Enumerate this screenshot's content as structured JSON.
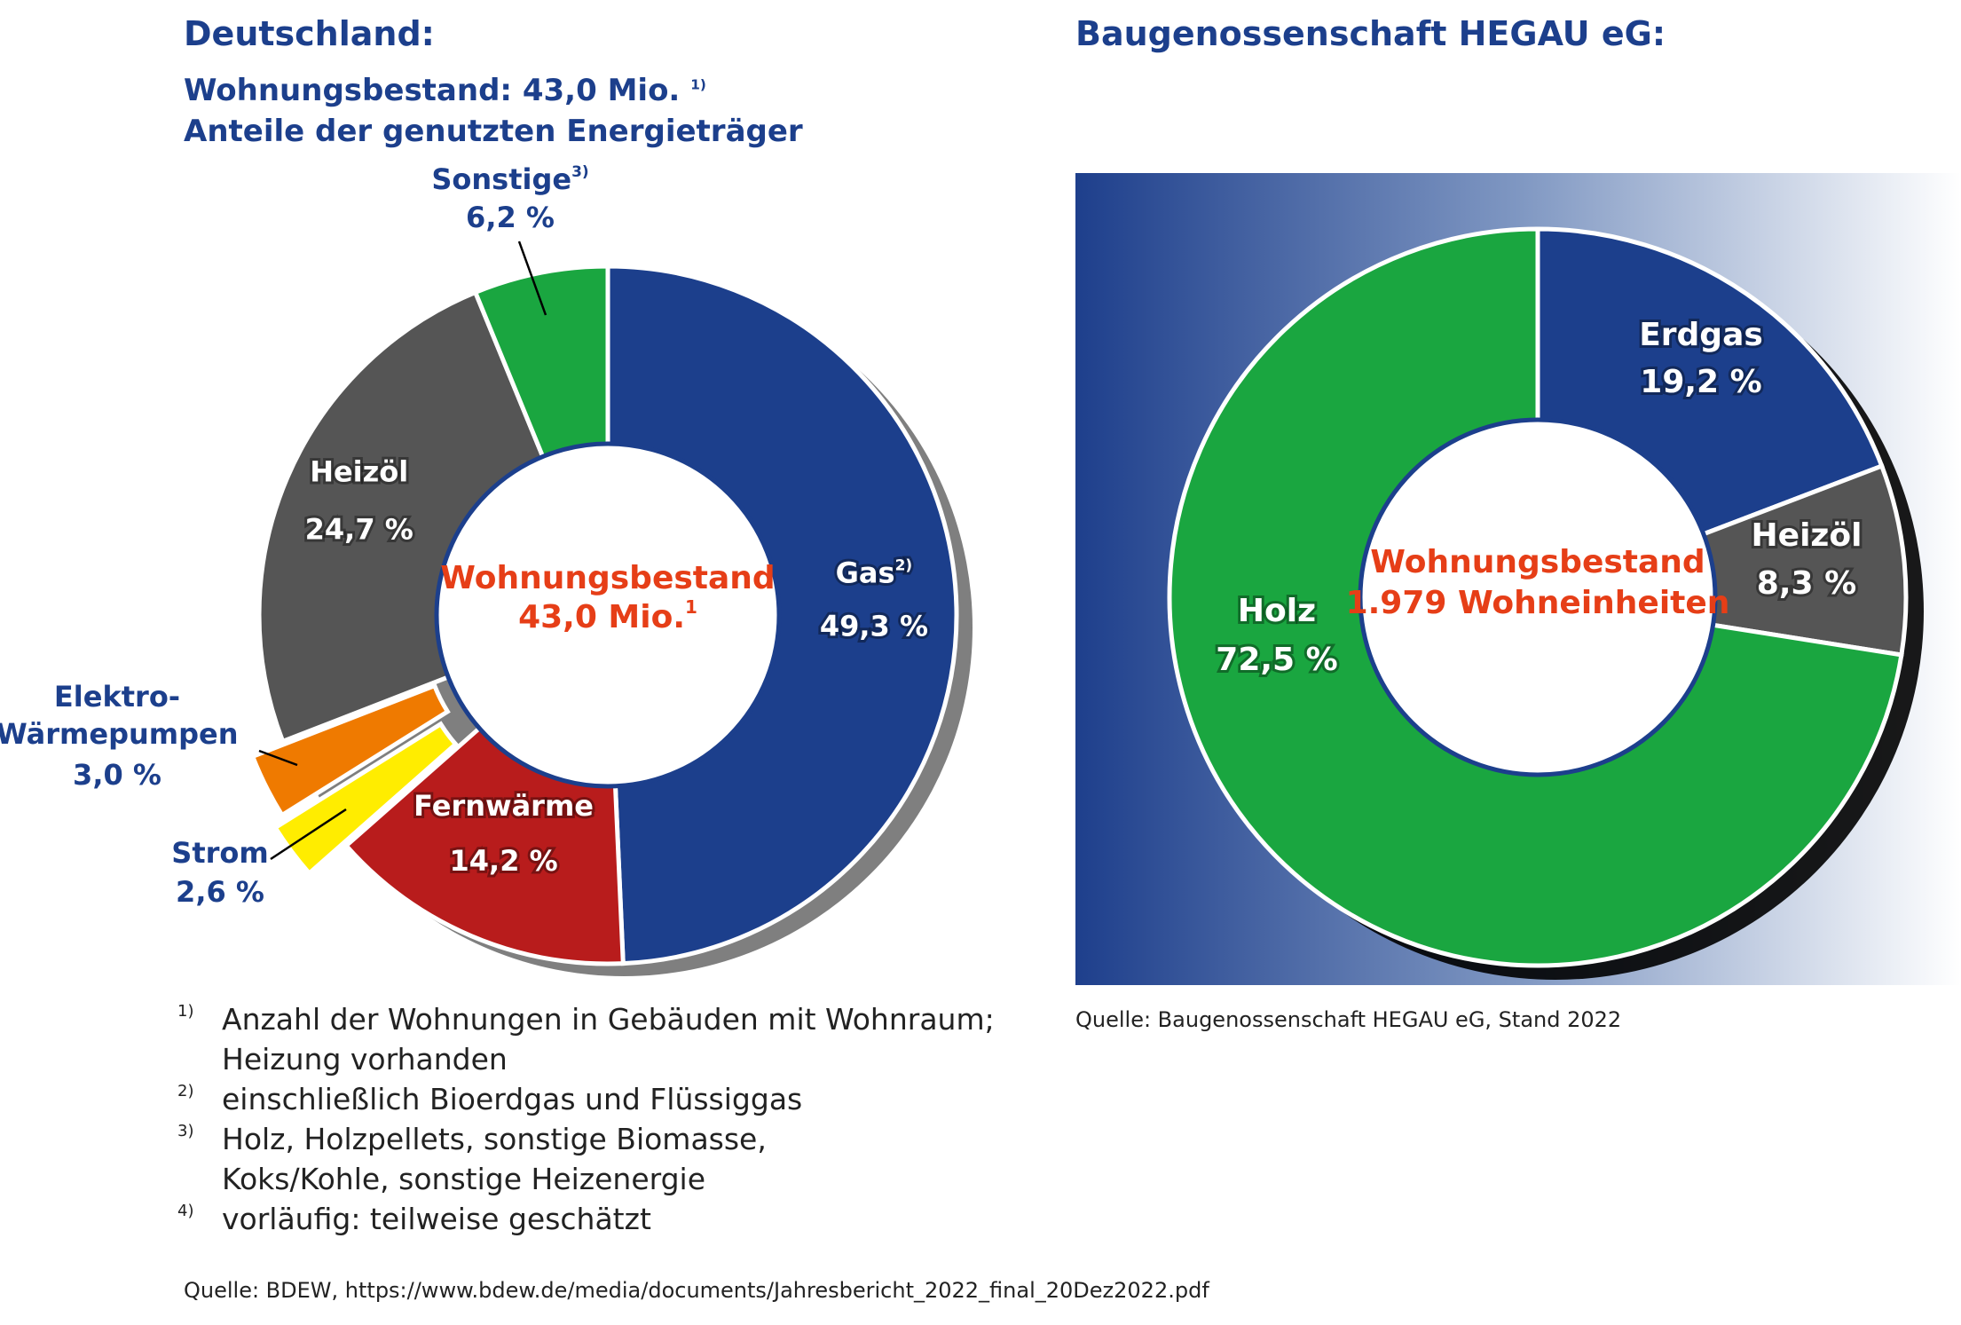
{
  "left": {
    "title": "Deutschland:",
    "subtitle_line1": "Wohnungsbestand: 43,0 Mio.",
    "subtitle_line1_sup": "1)",
    "subtitle_line2": "Anteile der genutzten Energieträger",
    "center_line1": "Wohnungsbestand",
    "center_line2": "43,0 Mio.",
    "center_line2_sup": "1"
  },
  "right": {
    "title": "Baugenossenschaft HEGAU eG:",
    "center_line1": "Wohnungsbestand",
    "center_line2": "1.979 Wohneinheiten"
  },
  "footnotes": [
    {
      "num": "1)",
      "text": "Anzahl der Wohnungen in Gebäuden mit Wohnraum; Heizung vorhanden"
    },
    {
      "num": "2)",
      "text": "einschließlich Bioerdgas und Flüssiggas"
    },
    {
      "num": "3)",
      "text": "Holz, Holzpellets, sonstige Biomasse, Koks/Kohle, sonstige Heizenergie"
    },
    {
      "num": "4)",
      "text": "vorläufig: teilweise geschätzt"
    }
  ],
  "source_left": "Quelle:  BDEW, https://www.bdew.de/media/documents/Jahresbericht_2022_final_20Dez2022.pdf",
  "source_right": "Quelle:  Baugenossenschaft HEGAU eG,  Stand 2022",
  "chart_data": [
    {
      "type": "pie",
      "title": "Deutschland:",
      "categories": [
        "Gas",
        "Fernwärme",
        "Strom",
        "Elektro-Wärmepumpen",
        "Heizöl",
        "Sonstige"
      ],
      "values": [
        49.3,
        14.2,
        2.6,
        3.0,
        24.7,
        6.2
      ],
      "value_labels": [
        "49,3 %",
        "14,2 %",
        "2,6 %",
        "3,0 %",
        "24,7 %",
        "6,2 %"
      ],
      "label_sups": [
        "2)",
        "",
        "",
        "",
        "",
        "3)"
      ],
      "colors": [
        "#1c3f8c",
        "#b81c1c",
        "#ffed00",
        "#ef7a00",
        "#555555",
        "#1aa640"
      ]
    },
    {
      "type": "pie",
      "title": "Baugenossenschaft HEGAU eG:",
      "categories": [
        "Erdgas",
        "Heizöl",
        "Holz"
      ],
      "values": [
        19.2,
        8.3,
        72.5
      ],
      "value_labels": [
        "19,2 %",
        "8,3 %",
        "72,5 %"
      ],
      "colors": [
        "#1c3f8c",
        "#555555",
        "#1aa640"
      ]
    }
  ]
}
